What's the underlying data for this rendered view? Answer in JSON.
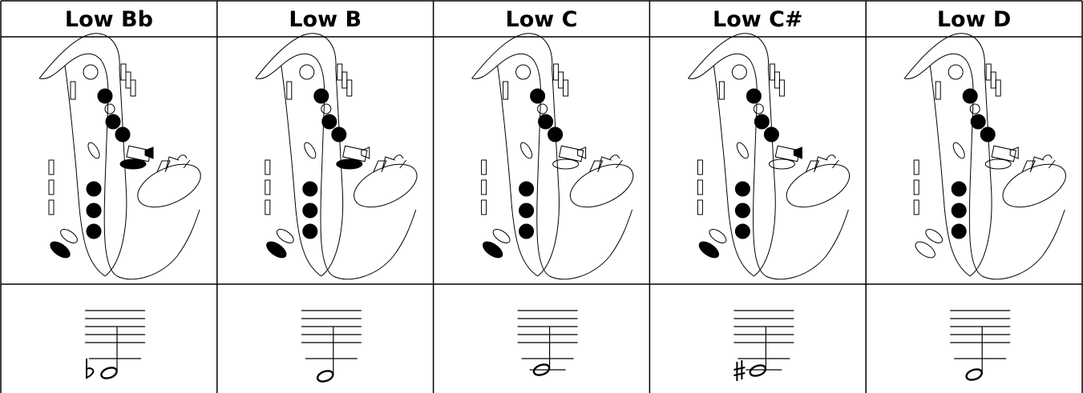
{
  "table": {
    "columns": [
      {
        "header": "Low Bb"
      },
      {
        "header": "Low B"
      },
      {
        "header": "Low C"
      },
      {
        "header": "Low C#"
      },
      {
        "header": "Low D"
      }
    ]
  }
}
